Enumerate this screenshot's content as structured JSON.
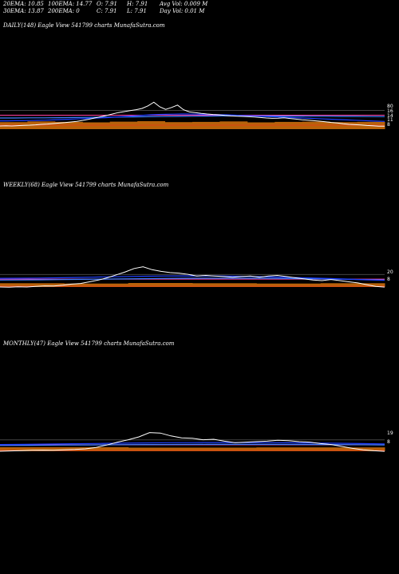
{
  "header": {
    "row1": [
      "20EMA: 10.85",
      "100EMA: 14.77",
      "O: 7.91",
      "H: 7.91",
      "Avg Vol: 0.009 M"
    ],
    "row2": [
      "30EMA: 13.87",
      "200EMA: 0",
      "C: 7.91",
      "L: 7.91",
      "Day Vol: 0.01 M"
    ]
  },
  "colors": {
    "background": "#000000",
    "price": "#ffffff",
    "ema20": "#1f3fff",
    "ema30": "#3f7fff",
    "ema100": "#ff3fa0",
    "ema200": "#ff2020",
    "volume": "#b8620a",
    "level": "#ffffff"
  },
  "chart_data": [
    {
      "type": "line",
      "title": "DAILY(148) Eagle View 541799 charts MunafaSutra.com",
      "y_labels": [
        "80",
        "16",
        "14",
        "11",
        "8"
      ],
      "price": [
        8.0,
        8.1,
        8.0,
        8.2,
        8.4,
        8.5,
        8.7,
        9.0,
        9.2,
        9.5,
        9.8,
        10.1,
        10.5,
        10.9,
        11.5,
        12.2,
        13.0,
        13.8,
        14.6,
        15.5,
        16.4,
        17.0,
        17.6,
        18.2,
        19.0,
        20.6,
        22.9,
        20.0,
        18.4,
        19.6,
        21.1,
        18.2,
        16.8,
        16.4,
        15.9,
        15.5,
        15.2,
        15.0,
        14.6,
        14.3,
        14.1,
        14.0,
        13.8,
        13.6,
        13.3,
        13.0,
        12.8,
        12.9,
        13.1,
        12.7,
        12.3,
        11.9,
        11.6,
        11.3,
        11.0,
        10.6,
        10.2,
        9.9,
        9.4,
        9.0,
        8.8,
        8.6,
        8.3,
        8.1,
        7.9,
        7.91
      ],
      "ema20": [
        11.2,
        11.2,
        11.3,
        11.3,
        11.4,
        11.5,
        11.6,
        11.8,
        12.0,
        12.2,
        12.4,
        12.6,
        12.8,
        13.0,
        13.2,
        13.5,
        13.8,
        14.1,
        14.4,
        14.7,
        15.0,
        15.2,
        15.3,
        15.4,
        15.5,
        15.5,
        15.4,
        15.3,
        15.2,
        15.1,
        15.0,
        14.8,
        14.6,
        14.4,
        14.2,
        14.0,
        13.8,
        13.6,
        13.4,
        13.2,
        13.0,
        12.8,
        12.6,
        12.4,
        12.2,
        12.0,
        11.8,
        11.6,
        11.4,
        11.2,
        11.0,
        10.85
      ],
      "ema30": [
        13.0,
        13.0,
        13.1,
        13.1,
        13.2,
        13.3,
        13.4,
        13.5,
        13.6,
        13.7,
        13.8,
        13.9,
        14.0,
        14.1,
        14.2,
        14.3,
        14.3,
        14.3,
        14.3,
        14.2,
        14.2,
        14.1,
        14.1,
        14.0,
        14.0,
        13.9,
        13.87
      ],
      "ema100": 14.77,
      "volume": [
        0.009,
        0.012,
        0.01,
        0.008,
        0.011,
        0.013,
        0.009,
        0.01,
        0.012,
        0.008,
        0.01,
        0.011,
        0.009,
        0.01
      ]
    },
    {
      "type": "line",
      "title": "WEEKLY(68) Eagle View 541799 charts MunafaSutra.com",
      "y_labels": [
        "20",
        "8"
      ],
      "price": [
        8.0,
        7.8,
        8.2,
        8.0,
        8.5,
        9.0,
        8.8,
        9.5,
        10.5,
        11.0,
        12.5,
        14.0,
        16.0,
        18.5,
        21.0,
        24.0,
        25.5,
        23.0,
        21.5,
        20.5,
        20.0,
        19.0,
        17.5,
        18.0,
        17.5,
        17.0,
        16.5,
        17.0,
        17.5,
        16.5,
        17.5,
        18.0,
        17.0,
        16.0,
        15.0,
        14.0,
        13.5,
        14.5,
        13.5,
        12.5,
        11.5,
        10.0,
        8.5,
        7.91
      ],
      "ema20": [
        15.5,
        15.6,
        15.7,
        15.9,
        16.2,
        16.5,
        16.8,
        17.1,
        17.3,
        17.5,
        17.6,
        17.6,
        17.5,
        17.3,
        17.0,
        16.6,
        16.2,
        15.8,
        15.3,
        14.8,
        14.2,
        13.7
      ],
      "ema30": [
        14.0,
        14.1,
        14.2,
        14.4,
        14.6,
        14.8,
        15.0,
        15.2,
        15.4,
        15.5,
        15.6,
        15.6,
        15.6,
        15.5,
        15.4,
        15.2,
        15.0,
        14.7,
        14.4,
        14.1
      ],
      "ema100": 14.77,
      "volume": [
        0.05,
        0.04,
        0.06,
        0.05,
        0.04,
        0.05
      ]
    },
    {
      "type": "line",
      "title": "MONTHLY(47) Eagle View 541799 charts MunafaSutra.com",
      "y_labels": [
        "19",
        "8"
      ],
      "price": [
        8.0,
        8.3,
        8.6,
        9.0,
        9.2,
        9.0,
        9.4,
        9.8,
        10.5,
        12.0,
        14.5,
        17.5,
        20.0,
        23.0,
        27.5,
        27.0,
        24.0,
        22.0,
        21.5,
        20.0,
        20.5,
        18.5,
        17.0,
        17.5,
        18.0,
        18.5,
        19.5,
        19.0,
        18.0,
        17.5,
        16.0,
        15.0,
        13.0,
        11.0,
        9.5,
        8.5,
        7.91
      ],
      "ema20": [
        15.0,
        15.2,
        15.5,
        15.8,
        16.1,
        16.4,
        16.7,
        16.9,
        17.0,
        17.1,
        17.1,
        17.0,
        16.8,
        16.6,
        16.3,
        16.0,
        15.7
      ],
      "ema30": [
        14.0,
        14.2,
        14.4,
        14.6,
        14.8,
        15.0,
        15.1,
        15.2,
        15.2,
        15.2,
        15.1,
        15.0,
        14.8,
        14.6
      ],
      "ema100": 14.77,
      "volume": [
        0.2,
        0.15,
        0.18
      ]
    }
  ]
}
